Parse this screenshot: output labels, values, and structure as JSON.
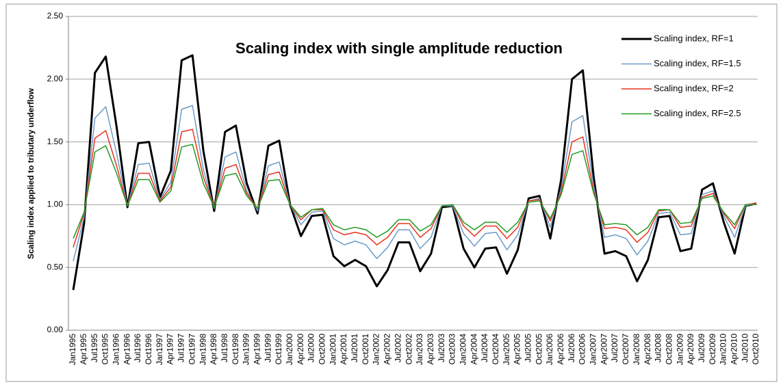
{
  "chart_data": {
    "type": "line",
    "title": "Scaling index with single amplitude reduction",
    "y_label": "Scaling index applied to tributary underflow",
    "categories": [
      "Jan1995",
      "Apr1995",
      "Jul1995",
      "Oct1995",
      "Jan1996",
      "Apr1996",
      "Jul1996",
      "Oct1996",
      "Jan1997",
      "Apr1997",
      "Jul1997",
      "Oct1997",
      "Jan1998",
      "Apr1998",
      "Jul1998",
      "Oct1998",
      "Jan1999",
      "Apr1999",
      "Jul1999",
      "Oct1999",
      "Jan2000",
      "Apr2000",
      "Jul2000",
      "Oct2000",
      "Jan2001",
      "Apr2001",
      "Jul2001",
      "Oct2001",
      "Jan2002",
      "Apr2002",
      "Jul2002",
      "Oct2002",
      "Jan2003",
      "Apr2003",
      "Jul2003",
      "Oct2003",
      "Jan2004",
      "Apr2004",
      "Jul2004",
      "Oct2004",
      "Jan2005",
      "Apr2005",
      "Jul2005",
      "Oct2005",
      "Jan2006",
      "Apr2006",
      "Jul2006",
      "Oct2006",
      "Jan2007",
      "Apr2007",
      "Jul2007",
      "Oct2007",
      "Jan2008",
      "Apr2008",
      "Jul2008",
      "Oct2008",
      "Jan2009",
      "Apr2009",
      "Jul2009",
      "Oct2009",
      "Jan2010",
      "Apr2010",
      "Jul2010",
      "Oct2010"
    ],
    "series": [
      {
        "name": "Scaling index, RF=1",
        "color": "#000000",
        "values": [
          0.32,
          0.85,
          2.05,
          2.18,
          1.62,
          0.98,
          1.49,
          1.5,
          1.06,
          1.27,
          2.15,
          2.19,
          1.43,
          0.95,
          1.58,
          1.63,
          1.17,
          0.93,
          1.47,
          1.51,
          1.0,
          0.75,
          0.91,
          0.92,
          0.59,
          0.51,
          0.56,
          0.51,
          0.35,
          0.48,
          0.7,
          0.7,
          0.47,
          0.61,
          0.98,
          0.99,
          0.65,
          0.5,
          0.65,
          0.66,
          0.45,
          0.64,
          1.05,
          1.07,
          0.73,
          1.2,
          2.0,
          2.07,
          1.22,
          0.61,
          0.63,
          0.59,
          0.39,
          0.56,
          0.9,
          0.91,
          0.63,
          0.65,
          1.12,
          1.17,
          0.86,
          0.61,
          0.99,
          1.01
        ]
      },
      {
        "name": "Scaling index, RF=1.5",
        "color": "#6a9bc9",
        "values": [
          0.55,
          0.9,
          1.69,
          1.78,
          1.41,
          0.99,
          1.32,
          1.33,
          1.04,
          1.18,
          1.76,
          1.79,
          1.28,
          0.97,
          1.38,
          1.42,
          1.11,
          0.95,
          1.31,
          1.34,
          1.0,
          0.84,
          0.94,
          0.95,
          0.73,
          0.68,
          0.71,
          0.68,
          0.57,
          0.66,
          0.8,
          0.8,
          0.65,
          0.74,
          0.99,
          0.99,
          0.77,
          0.67,
          0.77,
          0.78,
          0.64,
          0.76,
          1.03,
          1.05,
          0.82,
          1.13,
          1.66,
          1.71,
          1.15,
          0.74,
          0.76,
          0.73,
          0.6,
          0.71,
          0.93,
          0.94,
          0.76,
          0.77,
          1.08,
          1.11,
          0.91,
          0.74,
          0.99,
          1.01
        ]
      },
      {
        "name": "Scaling index, RF=2",
        "color": "#e8321e",
        "values": [
          0.66,
          0.93,
          1.53,
          1.59,
          1.31,
          0.99,
          1.25,
          1.25,
          1.03,
          1.14,
          1.58,
          1.6,
          1.22,
          0.98,
          1.29,
          1.32,
          1.09,
          0.97,
          1.24,
          1.26,
          1.0,
          0.88,
          0.96,
          0.96,
          0.8,
          0.76,
          0.78,
          0.76,
          0.68,
          0.74,
          0.85,
          0.85,
          0.74,
          0.81,
          0.99,
          1.0,
          0.83,
          0.75,
          0.83,
          0.83,
          0.73,
          0.82,
          1.03,
          1.04,
          0.87,
          1.1,
          1.5,
          1.54,
          1.11,
          0.81,
          0.82,
          0.8,
          0.7,
          0.78,
          0.95,
          0.96,
          0.82,
          0.83,
          1.06,
          1.09,
          0.93,
          0.81,
          1.0,
          1.01
        ]
      },
      {
        "name": "Scaling index, RF=2.5",
        "color": "#1f9a1f",
        "values": [
          0.73,
          0.94,
          1.42,
          1.47,
          1.25,
          0.99,
          1.2,
          1.2,
          1.02,
          1.11,
          1.46,
          1.48,
          1.17,
          0.98,
          1.23,
          1.25,
          1.07,
          0.97,
          1.19,
          1.2,
          1.0,
          0.9,
          0.96,
          0.97,
          0.84,
          0.8,
          0.82,
          0.8,
          0.74,
          0.79,
          0.88,
          0.88,
          0.79,
          0.84,
          0.99,
          1.0,
          0.86,
          0.8,
          0.86,
          0.86,
          0.78,
          0.86,
          1.02,
          1.03,
          0.89,
          1.08,
          1.4,
          1.43,
          1.09,
          0.84,
          0.85,
          0.84,
          0.76,
          0.82,
          0.96,
          0.96,
          0.85,
          0.86,
          1.05,
          1.07,
          0.94,
          0.84,
          1.0,
          1.0
        ]
      }
    ],
    "ylim": [
      0,
      2.5
    ],
    "yticks": [
      {
        "value": 0,
        "label": "0.00"
      },
      {
        "value": 0.5,
        "label": "0.50"
      },
      {
        "value": 1,
        "label": "1.00"
      },
      {
        "value": 1.5,
        "label": "1.50"
      },
      {
        "value": 2,
        "label": "2.00"
      },
      {
        "value": 2.5,
        "label": "2.50"
      }
    ],
    "grid": true,
    "legend": "top-right"
  }
}
